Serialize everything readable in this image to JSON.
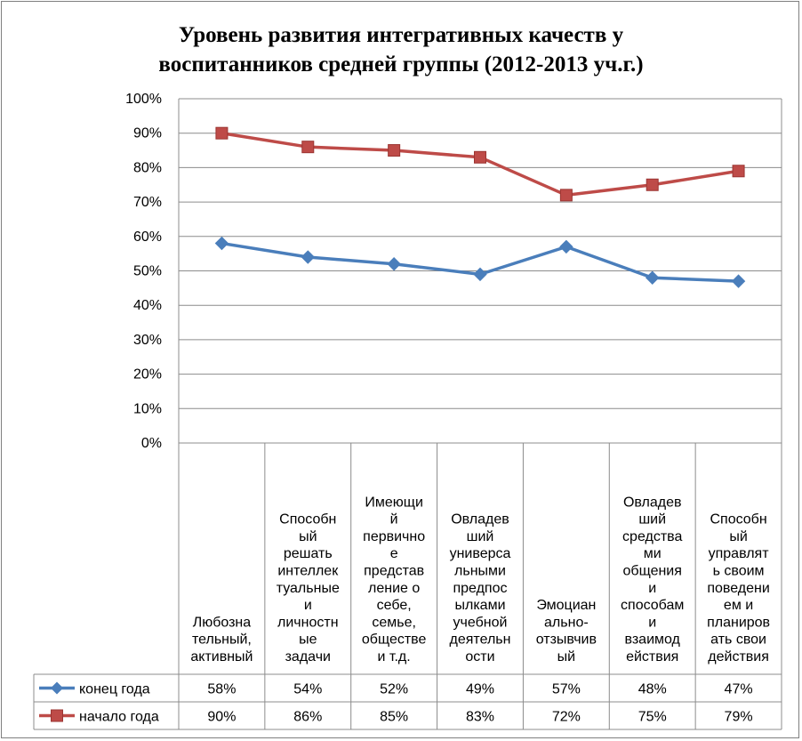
{
  "chart_data": {
    "type": "line",
    "title": [
      "Уровень развития интегративных качеств у",
      "воспитанников средней группы (2012-2013 уч.г.)"
    ],
    "yticks": [
      "0%",
      "10%",
      "20%",
      "30%",
      "40%",
      "50%",
      "60%",
      "70%",
      "80%",
      "90%",
      "100%"
    ],
    "ylim": [
      0,
      100
    ],
    "grid": true,
    "legend": "data-table",
    "categories": [
      [
        "Любозна",
        "тельный,",
        "активный"
      ],
      [
        "Способн",
        "ый",
        "решать",
        "интеллек",
        "туальные",
        "и",
        "личностн",
        "ые",
        "задачи"
      ],
      [
        "Имеющи",
        "й",
        "первично",
        "е",
        "представ",
        "ление о",
        "себе,",
        "семье,",
        "обществе",
        "и т.д."
      ],
      [
        "Овладев",
        "ший",
        "универса",
        "льными",
        "предпос",
        "ылками",
        "учебной",
        "деятельн",
        "ости"
      ],
      [
        "Эмоциан",
        "ально-",
        "отзывчив",
        "ый"
      ],
      [
        "Овладев",
        "ший",
        "средства",
        "ми",
        "общения",
        "и",
        "способам",
        "и",
        "взаимод",
        "ействия"
      ],
      [
        "Способн",
        "ый",
        "управлят",
        "ь своим",
        "поведени",
        "ем и",
        "планиров",
        "ать свои",
        "действия"
      ]
    ],
    "series": [
      {
        "name": "конец года",
        "color": "#4a7ebb",
        "marker": "diamond",
        "values": [
          58,
          54,
          52,
          49,
          57,
          48,
          47
        ],
        "labels": [
          "58%",
          "54%",
          "52%",
          "49%",
          "57%",
          "48%",
          "47%"
        ]
      },
      {
        "name": "начало года",
        "color": "#be4b48",
        "marker": "square",
        "values": [
          90,
          86,
          85,
          83,
          72,
          75,
          79
        ],
        "labels": [
          "90%",
          "86%",
          "85%",
          "83%",
          "72%",
          "75%",
          "79%"
        ]
      }
    ]
  }
}
